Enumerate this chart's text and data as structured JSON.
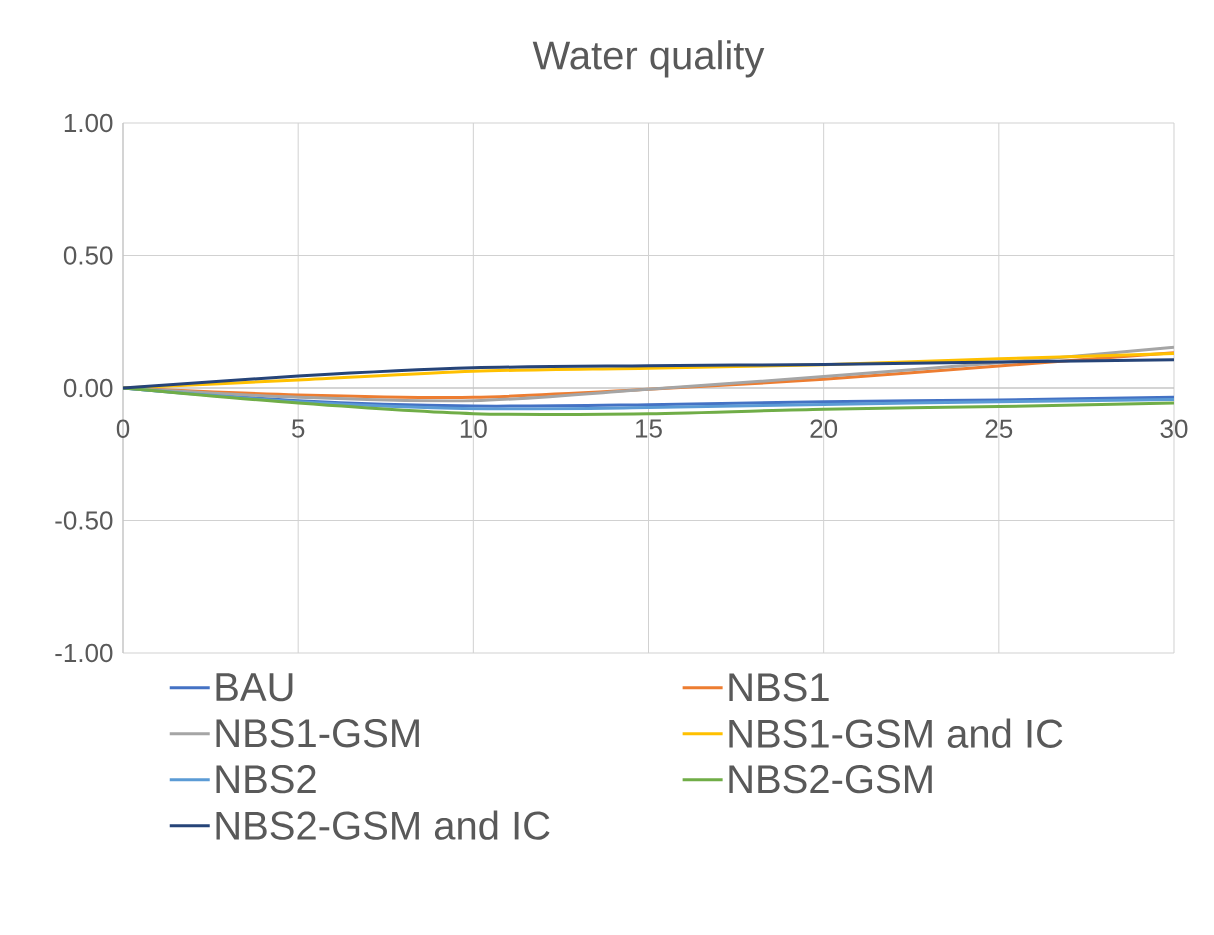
{
  "chart_data": {
    "type": "line",
    "title": "Water quality",
    "x": [
      0,
      5,
      10,
      15,
      20,
      25,
      30
    ],
    "xlim": [
      0,
      30
    ],
    "xticks": [
      0,
      5,
      10,
      15,
      20,
      25,
      30
    ],
    "ylim": [
      -1,
      1
    ],
    "yticks": [
      {
        "value": -1,
        "label": "-1.00"
      },
      {
        "value": -0.5,
        "label": "-0.50"
      },
      {
        "value": 0,
        "label": "0.00"
      },
      {
        "value": 0.5,
        "label": "0.50"
      },
      {
        "value": 1,
        "label": "1.00"
      }
    ],
    "grid": true,
    "legend": "bottom",
    "marker": "none",
    "line_style": "solid",
    "series": [
      {
        "name": "BAU",
        "color": "#4472c4",
        "values": [
          0,
          -0.048,
          -0.068,
          -0.063,
          -0.052,
          -0.045,
          -0.035
        ]
      },
      {
        "name": "NBS1",
        "color": "#ed7d31",
        "values": [
          0,
          -0.026,
          -0.035,
          -0.005,
          0.033,
          0.083,
          0.133
        ]
      },
      {
        "name": "NBS1-GSM",
        "color": "#a5a5a5",
        "values": [
          0,
          -0.035,
          -0.048,
          -0.005,
          0.043,
          0.095,
          0.154
        ]
      },
      {
        "name": "NBS1-GSM and IC",
        "color": "#ffc000",
        "values": [
          0,
          0.03,
          0.063,
          0.075,
          0.088,
          0.11,
          0.13
        ]
      },
      {
        "name": "NBS2",
        "color": "#5b9bd5",
        "values": [
          0,
          -0.052,
          -0.078,
          -0.074,
          -0.062,
          -0.052,
          -0.043
        ]
      },
      {
        "name": "NBS2-GSM",
        "color": "#70ad47",
        "values": [
          0,
          -0.057,
          -0.097,
          -0.097,
          -0.08,
          -0.07,
          -0.057
        ]
      },
      {
        "name": "NBS2-GSM and IC",
        "color": "#264478",
        "values": [
          0,
          0.045,
          0.076,
          0.084,
          0.089,
          0.098,
          0.107
        ]
      }
    ]
  }
}
